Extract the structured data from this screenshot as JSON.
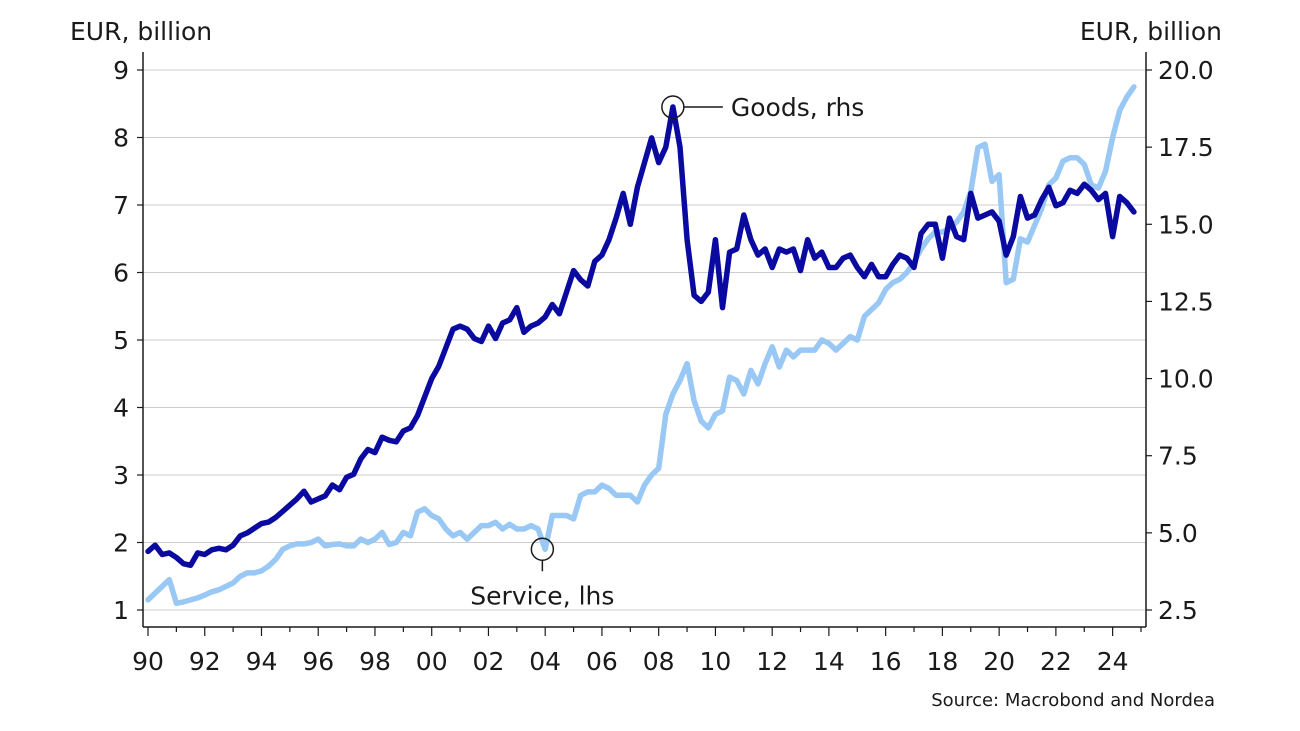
{
  "chart_data": {
    "type": "line",
    "left_axis_label": "EUR, billion",
    "right_axis_label": "EUR, billion",
    "left_ylim": [
      1,
      9
    ],
    "right_ylim": [
      2.5,
      20.0
    ],
    "left_ticks": [
      "1",
      "2",
      "3",
      "4",
      "5",
      "6",
      "7",
      "8",
      "9"
    ],
    "right_ticks": [
      "2.5",
      "5.0",
      "7.5",
      "10.0",
      "12.5",
      "15.0",
      "17.5",
      "20.0"
    ],
    "x_ticks": [
      "90",
      "92",
      "94",
      "96",
      "98",
      "00",
      "02",
      "04",
      "06",
      "08",
      "10",
      "12",
      "14",
      "16",
      "18",
      "20",
      "22",
      "24"
    ],
    "xlim": [
      1990,
      2025
    ],
    "grid": true,
    "series": [
      {
        "name": "Goods, rhs",
        "axis": "right",
        "color": "#0a0aa0",
        "points": [
          [
            1990.0,
            4.4
          ],
          [
            1990.25,
            4.6
          ],
          [
            1990.5,
            4.3
          ],
          [
            1990.75,
            4.35
          ],
          [
            1991.0,
            4.2
          ],
          [
            1991.25,
            4.0
          ],
          [
            1991.5,
            3.95
          ],
          [
            1991.75,
            4.35
          ],
          [
            1992.0,
            4.3
          ],
          [
            1992.25,
            4.45
          ],
          [
            1992.5,
            4.5
          ],
          [
            1992.75,
            4.45
          ],
          [
            1993.0,
            4.6
          ],
          [
            1993.25,
            4.9
          ],
          [
            1993.5,
            5.0
          ],
          [
            1993.75,
            5.15
          ],
          [
            1994.0,
            5.3
          ],
          [
            1994.25,
            5.35
          ],
          [
            1994.5,
            5.5
          ],
          [
            1994.75,
            5.7
          ],
          [
            1995.0,
            5.9
          ],
          [
            1995.25,
            6.1
          ],
          [
            1995.5,
            6.35
          ],
          [
            1995.75,
            6.0
          ],
          [
            1996.0,
            6.1
          ],
          [
            1996.25,
            6.2
          ],
          [
            1996.5,
            6.55
          ],
          [
            1996.75,
            6.4
          ],
          [
            1997.0,
            6.8
          ],
          [
            1997.25,
            6.9
          ],
          [
            1997.5,
            7.4
          ],
          [
            1997.75,
            7.7
          ],
          [
            1998.0,
            7.6
          ],
          [
            1998.25,
            8.1
          ],
          [
            1998.5,
            8.0
          ],
          [
            1998.75,
            7.95
          ],
          [
            1999.0,
            8.3
          ],
          [
            1999.25,
            8.4
          ],
          [
            1999.5,
            8.8
          ],
          [
            1999.75,
            9.4
          ],
          [
            2000.0,
            10.0
          ],
          [
            2000.25,
            10.4
          ],
          [
            2000.5,
            11.0
          ],
          [
            2000.75,
            11.6
          ],
          [
            2001.0,
            11.7
          ],
          [
            2001.25,
            11.6
          ],
          [
            2001.5,
            11.3
          ],
          [
            2001.75,
            11.2
          ],
          [
            2002.0,
            11.7
          ],
          [
            2002.25,
            11.3
          ],
          [
            2002.5,
            11.8
          ],
          [
            2002.75,
            11.9
          ],
          [
            2003.0,
            12.3
          ],
          [
            2003.25,
            11.5
          ],
          [
            2003.5,
            11.7
          ],
          [
            2003.75,
            11.8
          ],
          [
            2004.0,
            12.0
          ],
          [
            2004.25,
            12.4
          ],
          [
            2004.5,
            12.1
          ],
          [
            2004.75,
            12.8
          ],
          [
            2005.0,
            13.5
          ],
          [
            2005.25,
            13.2
          ],
          [
            2005.5,
            13.0
          ],
          [
            2005.75,
            13.8
          ],
          [
            2006.0,
            14.0
          ],
          [
            2006.25,
            14.5
          ],
          [
            2006.5,
            15.2
          ],
          [
            2006.75,
            16.0
          ],
          [
            2007.0,
            15.0
          ],
          [
            2007.25,
            16.2
          ],
          [
            2007.5,
            17.0
          ],
          [
            2007.75,
            17.8
          ],
          [
            2008.0,
            17.0
          ],
          [
            2008.25,
            17.5
          ],
          [
            2008.5,
            18.8
          ],
          [
            2008.75,
            17.5
          ],
          [
            2009.0,
            14.5
          ],
          [
            2009.25,
            12.7
          ],
          [
            2009.5,
            12.5
          ],
          [
            2009.75,
            12.8
          ],
          [
            2010.0,
            14.5
          ],
          [
            2010.25,
            12.3
          ],
          [
            2010.5,
            14.1
          ],
          [
            2010.75,
            14.2
          ],
          [
            2011.0,
            15.3
          ],
          [
            2011.25,
            14.5
          ],
          [
            2011.5,
            14.0
          ],
          [
            2011.75,
            14.2
          ],
          [
            2012.0,
            13.6
          ],
          [
            2012.25,
            14.2
          ],
          [
            2012.5,
            14.1
          ],
          [
            2012.75,
            14.2
          ],
          [
            2013.0,
            13.5
          ],
          [
            2013.25,
            14.5
          ],
          [
            2013.5,
            13.9
          ],
          [
            2013.75,
            14.1
          ],
          [
            2014.0,
            13.6
          ],
          [
            2014.25,
            13.6
          ],
          [
            2014.5,
            13.9
          ],
          [
            2014.75,
            14.0
          ],
          [
            2015.0,
            13.6
          ],
          [
            2015.25,
            13.3
          ],
          [
            2015.5,
            13.7
          ],
          [
            2015.75,
            13.3
          ],
          [
            2016.0,
            13.3
          ],
          [
            2016.25,
            13.7
          ],
          [
            2016.5,
            14.0
          ],
          [
            2016.75,
            13.9
          ],
          [
            2017.0,
            13.6
          ],
          [
            2017.25,
            14.7
          ],
          [
            2017.5,
            15.0
          ],
          [
            2017.75,
            15.0
          ],
          [
            2018.0,
            13.9
          ],
          [
            2018.25,
            15.2
          ],
          [
            2018.5,
            14.6
          ],
          [
            2018.75,
            14.5
          ],
          [
            2019.0,
            16.0
          ],
          [
            2019.25,
            15.2
          ],
          [
            2019.5,
            15.3
          ],
          [
            2019.75,
            15.4
          ],
          [
            2020.0,
            15.1
          ],
          [
            2020.25,
            14.0
          ],
          [
            2020.5,
            14.6
          ],
          [
            2020.75,
            15.9
          ],
          [
            2021.0,
            15.2
          ],
          [
            2021.25,
            15.3
          ],
          [
            2021.5,
            15.8
          ],
          [
            2021.75,
            16.2
          ],
          [
            2022.0,
            15.6
          ],
          [
            2022.25,
            15.7
          ],
          [
            2022.5,
            16.1
          ],
          [
            2022.75,
            16.0
          ],
          [
            2023.0,
            16.3
          ],
          [
            2023.25,
            16.1
          ],
          [
            2023.5,
            15.8
          ],
          [
            2023.75,
            16.0
          ],
          [
            2024.0,
            14.6
          ],
          [
            2024.25,
            15.9
          ],
          [
            2024.5,
            15.7
          ],
          [
            2024.75,
            15.4
          ]
        ]
      },
      {
        "name": "Service, lhs",
        "axis": "left",
        "color": "#99c8f5",
        "points": [
          [
            1990.0,
            1.15
          ],
          [
            1990.25,
            1.25
          ],
          [
            1990.5,
            1.35
          ],
          [
            1990.75,
            1.45
          ],
          [
            1991.0,
            1.1
          ],
          [
            1991.25,
            1.12
          ],
          [
            1991.5,
            1.15
          ],
          [
            1991.75,
            1.18
          ],
          [
            1992.0,
            1.22
          ],
          [
            1992.25,
            1.27
          ],
          [
            1992.5,
            1.3
          ],
          [
            1992.75,
            1.35
          ],
          [
            1993.0,
            1.4
          ],
          [
            1993.25,
            1.5
          ],
          [
            1993.5,
            1.55
          ],
          [
            1993.75,
            1.55
          ],
          [
            1994.0,
            1.58
          ],
          [
            1994.25,
            1.65
          ],
          [
            1994.5,
            1.75
          ],
          [
            1994.75,
            1.9
          ],
          [
            1995.0,
            1.95
          ],
          [
            1995.25,
            1.98
          ],
          [
            1995.5,
            1.98
          ],
          [
            1995.75,
            2.0
          ],
          [
            1996.0,
            2.05
          ],
          [
            1996.25,
            1.95
          ],
          [
            1996.5,
            1.97
          ],
          [
            1996.75,
            1.98
          ],
          [
            1997.0,
            1.95
          ],
          [
            1997.25,
            1.95
          ],
          [
            1997.5,
            2.05
          ],
          [
            1997.75,
            2.0
          ],
          [
            1998.0,
            2.05
          ],
          [
            1998.25,
            2.15
          ],
          [
            1998.5,
            1.97
          ],
          [
            1998.75,
            2.0
          ],
          [
            1999.0,
            2.15
          ],
          [
            1999.25,
            2.1
          ],
          [
            1999.5,
            2.45
          ],
          [
            1999.75,
            2.5
          ],
          [
            2000.0,
            2.4
          ],
          [
            2000.25,
            2.35
          ],
          [
            2000.5,
            2.2
          ],
          [
            2000.75,
            2.1
          ],
          [
            2001.0,
            2.15
          ],
          [
            2001.25,
            2.05
          ],
          [
            2001.5,
            2.15
          ],
          [
            2001.75,
            2.25
          ],
          [
            2002.0,
            2.25
          ],
          [
            2002.25,
            2.3
          ],
          [
            2002.5,
            2.2
          ],
          [
            2002.75,
            2.27
          ],
          [
            2003.0,
            2.2
          ],
          [
            2003.25,
            2.2
          ],
          [
            2003.5,
            2.25
          ],
          [
            2003.75,
            2.2
          ],
          [
            2004.0,
            1.9
          ],
          [
            2004.25,
            2.4
          ],
          [
            2004.5,
            2.4
          ],
          [
            2004.75,
            2.4
          ],
          [
            2005.0,
            2.35
          ],
          [
            2005.25,
            2.7
          ],
          [
            2005.5,
            2.75
          ],
          [
            2005.75,
            2.75
          ],
          [
            2006.0,
            2.85
          ],
          [
            2006.25,
            2.8
          ],
          [
            2006.5,
            2.7
          ],
          [
            2006.75,
            2.7
          ],
          [
            2007.0,
            2.7
          ],
          [
            2007.25,
            2.6
          ],
          [
            2007.5,
            2.85
          ],
          [
            2007.75,
            3.0
          ],
          [
            2008.0,
            3.1
          ],
          [
            2008.25,
            3.9
          ],
          [
            2008.5,
            4.2
          ],
          [
            2008.75,
            4.4
          ],
          [
            2009.0,
            4.65
          ],
          [
            2009.25,
            4.1
          ],
          [
            2009.5,
            3.8
          ],
          [
            2009.75,
            3.7
          ],
          [
            2010.0,
            3.9
          ],
          [
            2010.25,
            3.95
          ],
          [
            2010.5,
            4.45
          ],
          [
            2010.75,
            4.4
          ],
          [
            2011.0,
            4.2
          ],
          [
            2011.25,
            4.55
          ],
          [
            2011.5,
            4.35
          ],
          [
            2011.75,
            4.65
          ],
          [
            2012.0,
            4.9
          ],
          [
            2012.25,
            4.6
          ],
          [
            2012.5,
            4.85
          ],
          [
            2012.75,
            4.75
          ],
          [
            2013.0,
            4.85
          ],
          [
            2013.25,
            4.85
          ],
          [
            2013.5,
            4.85
          ],
          [
            2013.75,
            5.0
          ],
          [
            2014.0,
            4.95
          ],
          [
            2014.25,
            4.85
          ],
          [
            2014.5,
            4.95
          ],
          [
            2014.75,
            5.05
          ],
          [
            2015.0,
            5.0
          ],
          [
            2015.25,
            5.35
          ],
          [
            2015.5,
            5.45
          ],
          [
            2015.75,
            5.55
          ],
          [
            2016.0,
            5.75
          ],
          [
            2016.25,
            5.85
          ],
          [
            2016.5,
            5.9
          ],
          [
            2016.75,
            6.0
          ],
          [
            2017.0,
            6.15
          ],
          [
            2017.25,
            6.35
          ],
          [
            2017.5,
            6.5
          ],
          [
            2017.75,
            6.6
          ],
          [
            2018.0,
            6.6
          ],
          [
            2018.25,
            6.65
          ],
          [
            2018.5,
            6.75
          ],
          [
            2018.75,
            6.9
          ],
          [
            2019.0,
            7.2
          ],
          [
            2019.25,
            7.85
          ],
          [
            2019.5,
            7.9
          ],
          [
            2019.75,
            7.35
          ],
          [
            2020.0,
            7.45
          ],
          [
            2020.25,
            5.85
          ],
          [
            2020.5,
            5.9
          ],
          [
            2020.75,
            6.5
          ],
          [
            2021.0,
            6.45
          ],
          [
            2021.25,
            6.7
          ],
          [
            2021.5,
            6.95
          ],
          [
            2021.75,
            7.3
          ],
          [
            2022.0,
            7.4
          ],
          [
            2022.25,
            7.65
          ],
          [
            2022.5,
            7.7
          ],
          [
            2022.75,
            7.7
          ],
          [
            2023.0,
            7.6
          ],
          [
            2023.25,
            7.3
          ],
          [
            2023.5,
            7.25
          ],
          [
            2023.75,
            7.5
          ],
          [
            2024.0,
            8.0
          ],
          [
            2024.25,
            8.4
          ],
          [
            2024.5,
            8.6
          ],
          [
            2024.75,
            8.75
          ]
        ]
      }
    ],
    "annotations": [
      {
        "text": "Goods, rhs",
        "series": "Goods, rhs",
        "x": 2008.5,
        "y": 18.8
      },
      {
        "text": "Service, lhs",
        "series": "Service, lhs",
        "x": 2003.9,
        "y": 1.9
      }
    ],
    "source": "Source: Macrobond and Nordea"
  }
}
